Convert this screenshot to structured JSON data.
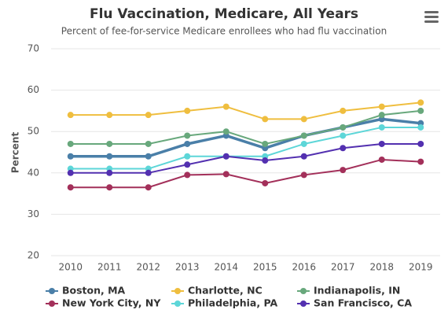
{
  "chart_data": {
    "type": "line",
    "title": "Flu Vaccination, Medicare, All Years",
    "subtitle": "Percent of fee-for-service Medicare enrollees who had flu vaccination",
    "y_label": "Percent",
    "x": [
      2010,
      2011,
      2012,
      2013,
      2014,
      2015,
      2016,
      2017,
      2018,
      2019
    ],
    "xlim": [
      2009.5,
      2019.5
    ],
    "xticks": [
      2010,
      2011,
      2012,
      2013,
      2014,
      2015,
      2016,
      2017,
      2018,
      2019
    ],
    "ylim": [
      20,
      70
    ],
    "yticks": [
      20,
      30,
      40,
      50,
      60,
      70
    ],
    "grid": true,
    "series": [
      {
        "name": "Boston, MA",
        "color": "#4a7fa8",
        "values": [
          44,
          44,
          44,
          47,
          49,
          46,
          49,
          51,
          53,
          52
        ]
      },
      {
        "name": "Charlotte, NC",
        "color": "#efbe3f",
        "values": [
          54,
          54,
          54,
          55,
          56,
          53,
          53,
          55,
          56,
          57
        ]
      },
      {
        "name": "Indianapolis, IN",
        "color": "#68a87c",
        "values": [
          47,
          47,
          47,
          49,
          50,
          47,
          49,
          51,
          54,
          55
        ]
      },
      {
        "name": "New York City, NY",
        "color": "#a3305a",
        "values": [
          36.5,
          36.5,
          36.5,
          39.5,
          39.7,
          37.5,
          39.5,
          40.7,
          43.2,
          42.7
        ]
      },
      {
        "name": "Philadelphia, PA",
        "color": "#5dd6d8",
        "values": [
          41,
          41,
          41,
          44,
          44,
          44,
          47,
          49,
          51,
          51
        ]
      },
      {
        "name": "San Francisco, CA",
        "color": "#5330b0",
        "values": [
          40,
          40,
          40,
          42,
          44,
          43,
          44,
          46,
          47,
          47
        ]
      }
    ]
  }
}
